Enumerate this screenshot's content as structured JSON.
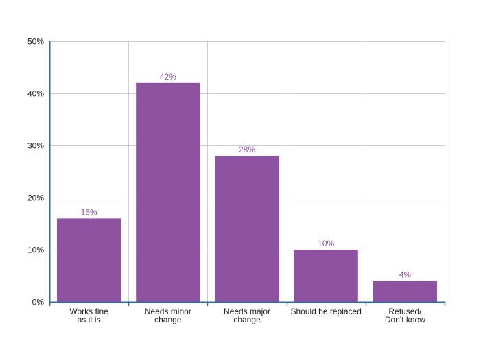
{
  "colors": {
    "bar": "#8f52a1",
    "bar_label": "#8f52a1",
    "axis": "#2f6aa0",
    "grid": "#cccccc",
    "text": "#222222"
  },
  "chart_data": {
    "type": "bar",
    "title": "",
    "xlabel": "",
    "ylabel": "",
    "ylim": [
      0,
      50
    ],
    "y_ticks": [
      {
        "value": 0,
        "label": "0%"
      },
      {
        "value": 10,
        "label": "10%"
      },
      {
        "value": 20,
        "label": "20%"
      },
      {
        "value": 30,
        "label": "30%"
      },
      {
        "value": 40,
        "label": "40%"
      },
      {
        "value": 50,
        "label": "50%"
      }
    ],
    "grid": true,
    "legend": "none",
    "categories": [
      [
        "Works fine",
        "as it is"
      ],
      [
        "Needs minor",
        "change"
      ],
      [
        "Needs major",
        "change"
      ],
      [
        "Should be replaced"
      ],
      [
        "Refused/",
        "Don't know"
      ]
    ],
    "values": [
      16,
      42,
      28,
      10,
      4
    ],
    "data_labels": [
      "16%",
      "42%",
      "28%",
      "10%",
      "4%"
    ]
  }
}
